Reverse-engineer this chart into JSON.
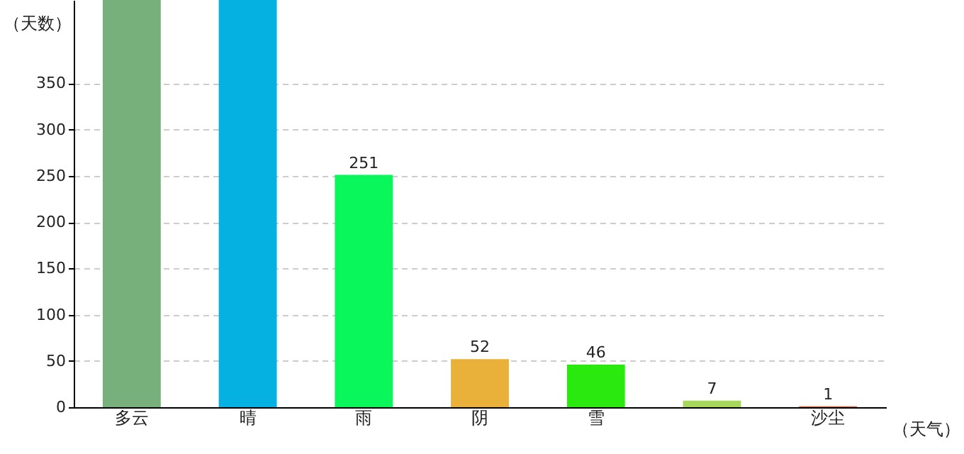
{
  "chart_data": {
    "type": "bar",
    "xlabel": "（天气）",
    "ylabel": "（天数）",
    "categories": [
      "多云",
      "晴",
      "雨",
      "阴",
      "雪",
      null,
      "沙尘"
    ],
    "values": [
      440,
      440,
      251,
      52,
      46,
      7,
      1
    ],
    "colors": [
      "#77b07a",
      "#05b1e0",
      "#0af75c",
      "#e9b03a",
      "#2ae90f",
      "#a8d85a",
      "#d9603b"
    ],
    "value_labels": [
      null,
      null,
      "251",
      "52",
      "46",
      "7",
      "1"
    ],
    "ylim": [
      0,
      440
    ],
    "yticks": [
      0,
      50,
      100,
      150,
      200,
      250,
      300,
      350
    ],
    "grid": "y"
  }
}
